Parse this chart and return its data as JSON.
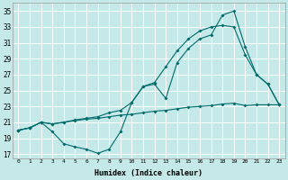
{
  "xlabel": "Humidex (Indice chaleur)",
  "bg_color": "#c5e8e8",
  "grid_color": "#ffffff",
  "line_color": "#006b6b",
  "xlim": [
    -0.5,
    23.5
  ],
  "ylim": [
    16.5,
    36
  ],
  "yticks": [
    17,
    19,
    21,
    23,
    25,
    27,
    29,
    31,
    33,
    35
  ],
  "xticks": [
    0,
    1,
    2,
    3,
    4,
    5,
    6,
    7,
    8,
    9,
    10,
    11,
    12,
    13,
    14,
    15,
    16,
    17,
    18,
    19,
    20,
    21,
    22,
    23
  ],
  "line1_x": [
    0,
    1,
    2,
    3,
    4,
    5,
    6,
    7,
    8,
    9,
    10,
    11,
    12,
    13,
    14,
    15,
    16,
    17,
    18,
    19,
    20,
    21,
    22,
    23
  ],
  "line1_y": [
    20.0,
    20.3,
    21.0,
    19.8,
    18.3,
    17.9,
    17.6,
    17.1,
    17.6,
    19.8,
    23.5,
    25.5,
    25.8,
    24.0,
    28.5,
    30.3,
    31.5,
    32.0,
    34.5,
    35.0,
    30.5,
    27.0,
    25.8,
    23.2
  ],
  "line2_x": [
    0,
    1,
    2,
    3,
    4,
    5,
    6,
    7,
    8,
    9,
    10,
    11,
    12,
    13,
    14,
    15,
    16,
    17,
    18,
    19,
    20,
    21,
    22,
    23
  ],
  "line2_y": [
    20.0,
    20.3,
    21.0,
    20.8,
    21.0,
    21.3,
    21.5,
    21.7,
    22.2,
    22.5,
    23.5,
    25.5,
    26.0,
    28.0,
    30.0,
    31.5,
    32.5,
    33.0,
    33.2,
    33.0,
    29.5,
    27.0,
    25.8,
    23.2
  ],
  "line3_x": [
    0,
    1,
    2,
    3,
    4,
    5,
    6,
    7,
    8,
    9,
    10,
    11,
    12,
    13,
    14,
    15,
    16,
    17,
    18,
    19,
    20,
    21,
    22,
    23
  ],
  "line3_y": [
    20.0,
    20.3,
    21.0,
    20.8,
    21.0,
    21.2,
    21.4,
    21.5,
    21.7,
    21.9,
    22.0,
    22.2,
    22.4,
    22.5,
    22.7,
    22.9,
    23.0,
    23.1,
    23.3,
    23.4,
    23.1,
    23.2,
    23.2,
    23.2
  ]
}
